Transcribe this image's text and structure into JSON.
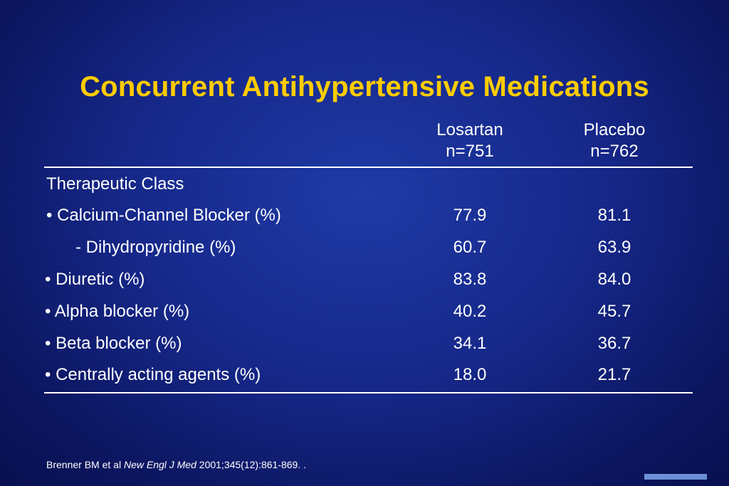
{
  "title": "Concurrent Antihypertensive Medications",
  "columns": [
    {
      "name": "Losartan",
      "n": "n=751"
    },
    {
      "name": "Placebo",
      "n": "n=762"
    }
  ],
  "section_label": "Therapeutic Class",
  "rows": [
    {
      "label": "•  Calcium-Channel Blocker (%)",
      "losartan": "77.9",
      "placebo": "81.1"
    },
    {
      "label": "- Dihydropyridine (%)",
      "losartan": "60.7",
      "placebo": "63.9"
    },
    {
      "label": "• Diuretic (%)",
      "losartan": "83.8",
      "placebo": "84.0"
    },
    {
      "label": "• Alpha blocker (%)",
      "losartan": "40.2",
      "placebo": "45.7"
    },
    {
      "label": "• Beta blocker (%)",
      "losartan": "34.1",
      "placebo": "36.7"
    },
    {
      "label": "• Centrally acting agents (%)",
      "losartan": "18.0",
      "placebo": "21.7"
    }
  ],
  "citation": {
    "authors": "Brenner BM et al",
    "journal": "New Engl J  Med",
    "details": "2001;345(12):861-869. ."
  },
  "colors": {
    "title": "#ffcc00",
    "background": "#16288a",
    "text": "#ffffff"
  }
}
